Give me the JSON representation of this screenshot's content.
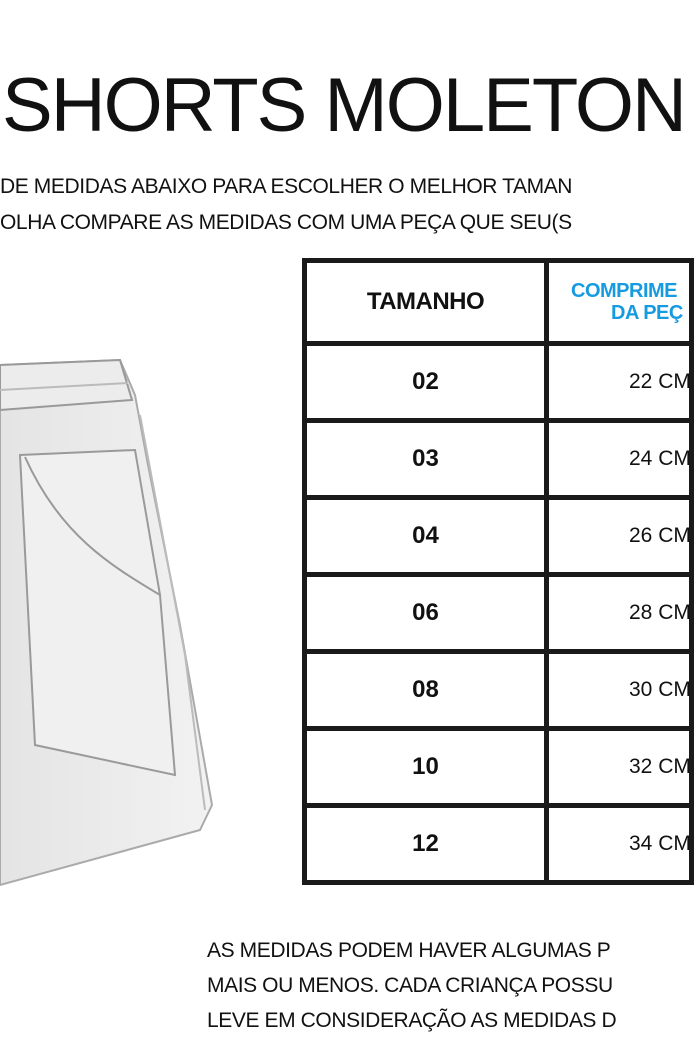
{
  "title": "SHORTS MOLETON",
  "subtitle_lines": [
    "DE MEDIDAS ABAIXO PARA ESCOLHER O MELHOR TAMAN",
    "OLHA COMPARE AS MEDIDAS COM UMA PEÇA QUE SEU(S"
  ],
  "table": {
    "headers": [
      "TAMANHO",
      "COMPRIME",
      "DA PEÇ"
    ],
    "rows": [
      {
        "size": "02",
        "length": "22 CM"
      },
      {
        "size": "03",
        "length": "24 CM"
      },
      {
        "size": "04",
        "length": "26 CM"
      },
      {
        "size": "06",
        "length": "28 CM"
      },
      {
        "size": "08",
        "length": "30 CM"
      },
      {
        "size": "10",
        "length": "32 CM"
      },
      {
        "size": "12",
        "length": "34 CM"
      }
    ]
  },
  "note_lines": [
    "AS MEDIDAS PODEM HAVER ALGUMAS P",
    "MAIS OU MENOS. CADA CRIANÇA POSSU",
    "LEVE EM CONSIDERAÇÃO AS MEDIDAS D"
  ],
  "colors": {
    "accent": "#169be0",
    "border": "#1a1a1a"
  }
}
